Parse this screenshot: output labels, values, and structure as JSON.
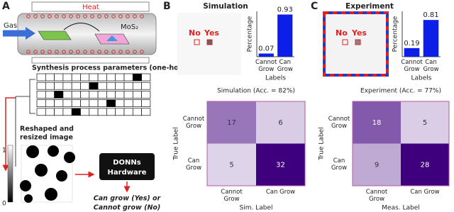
{
  "panel_labels": [
    "A",
    "B",
    "C"
  ],
  "panel_a": {
    "heat": "Heat",
    "gas": "Gas",
    "product": "MoS₂",
    "params_title": "Synthesis process parameters (one-hot)",
    "one_hot": [
      11,
      6,
      2,
      8,
      4
    ],
    "image_title": [
      "Reshaped and",
      "resized image"
    ],
    "colorbar_ticks": [
      1,
      0
    ],
    "hardware": [
      "DONNs",
      "Hardware"
    ],
    "output": [
      "Can grow (Yes) or",
      "Cannot grow (No)"
    ]
  },
  "panel_b": {
    "title": "Simulation",
    "no": "No",
    "yes": "Yes"
  },
  "panel_c": {
    "title": "Experiment",
    "no": "No",
    "yes": "Yes"
  },
  "chart_data": [
    {
      "type": "bar",
      "ylabel": "Percentage",
      "xlabel": "Labels",
      "categories": [
        "Cannot Grow",
        "Can Grow"
      ],
      "values": [
        0.07,
        0.93
      ],
      "color": "#0b1fe8",
      "ylim": [
        0,
        1
      ]
    },
    {
      "type": "heatmap",
      "title": "Simulation (Acc. = 82%)",
      "xlabel": "Sim. Label",
      "ylabel": "True Label",
      "categories": [
        "Cannot Grow",
        "Can Grow"
      ],
      "values": [
        [
          17,
          6
        ],
        [
          5,
          32
        ]
      ]
    },
    {
      "type": "bar",
      "ylabel": "Percentage",
      "xlabel": "Labels",
      "categories": [
        "Cannot Grow",
        "Can Grow"
      ],
      "values": [
        0.19,
        0.81
      ],
      "color": "#0b1fe8",
      "ylim": [
        0,
        1
      ]
    },
    {
      "type": "heatmap",
      "title": "Experiment (Acc. = 77%)",
      "xlabel": "Meas. Label",
      "ylabel": "True Label",
      "categories": [
        "Cannot Grow",
        "Can Grow"
      ],
      "values": [
        [
          18,
          5
        ],
        [
          9,
          28
        ]
      ]
    }
  ]
}
